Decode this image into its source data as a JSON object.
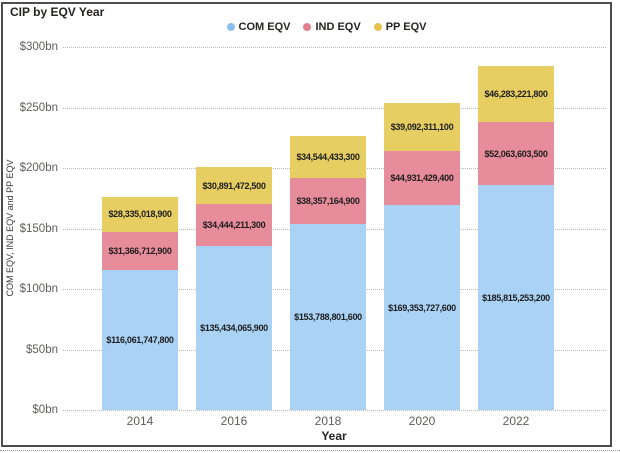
{
  "title": "CIP by EQV Year",
  "legend": {
    "items": [
      {
        "label": "COM EQV",
        "dot_color": "#89BFEF"
      },
      {
        "label": "IND EQV",
        "dot_color": "#E27E8F"
      },
      {
        "label": "PP EQV",
        "dot_color": "#E5C34D"
      }
    ]
  },
  "chart_data": {
    "type": "bar",
    "stacked": true,
    "title": "CIP by EQV Year",
    "xlabel": "Year",
    "ylabel": "COM EQV, IND EQV and PP EQV",
    "categories": [
      "2014",
      "2016",
      "2018",
      "2020",
      "2022"
    ],
    "series": [
      {
        "name": "COM EQV",
        "color": "#A9D2F5",
        "values": [
          116061747800,
          135434065900,
          153788801600,
          169353727600,
          185815253200
        ],
        "labels": [
          "$116,061,747,800",
          "$135,434,065,900",
          "$153,788,801,600",
          "$169,353,727,600",
          "$185,815,253,200"
        ]
      },
      {
        "name": "IND EQV",
        "color": "#E78C9A",
        "values": [
          31366712900,
          34444211300,
          38357164900,
          44931429400,
          52063603500
        ],
        "labels": [
          "$31,366,712,900",
          "$34,444,211,300",
          "$38,357,164,900",
          "$44,931,429,400",
          "$52,063,603,500"
        ]
      },
      {
        "name": "PP EQV",
        "color": "#E7CE63",
        "values": [
          28335018900,
          30891472500,
          34544433300,
          39092311100,
          46283221800
        ],
        "labels": [
          "$28,335,018,900",
          "$30,891,472,500",
          "$34,544,433,300",
          "$39,092,311,100",
          "$46,283,221,800"
        ]
      }
    ],
    "ylim_bn": [
      0,
      300
    ],
    "yticks": [
      "$0bn",
      "$50bn",
      "$100bn",
      "$150bn",
      "$200bn",
      "$250bn",
      "$300bn"
    ],
    "grid": "horizontal-dotted",
    "legend_position": "top-center"
  }
}
